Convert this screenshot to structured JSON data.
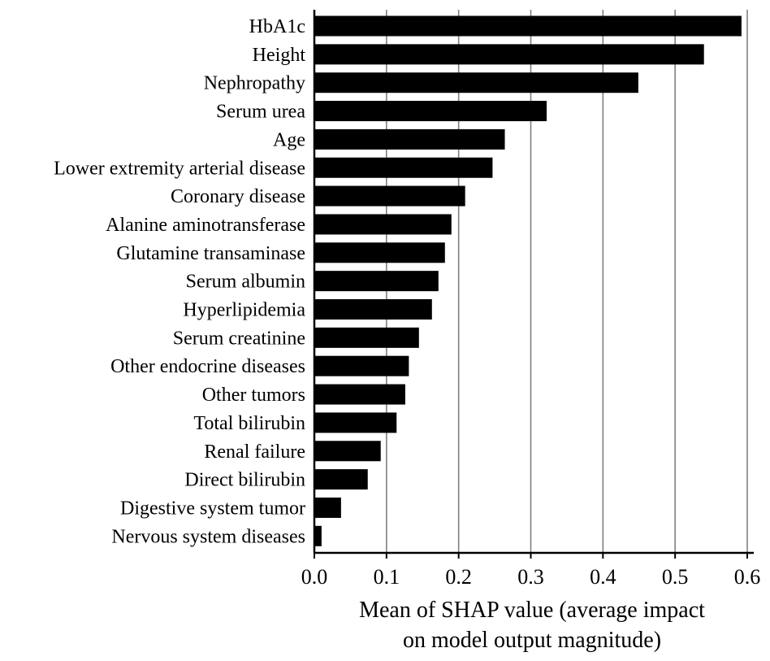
{
  "chart_data": {
    "type": "bar",
    "orientation": "horizontal",
    "categories": [
      "HbA1c",
      "Height",
      "Nephropathy",
      "Serum urea",
      "Age",
      "Lower extremity arterial disease",
      "Coronary disease",
      "Alanine aminotransferase",
      "Glutamine transaminase",
      "Serum albumin",
      "Hyperlipidemia",
      "Serum creatinine",
      "Other endocrine diseases",
      "Other tumors",
      "Total bilirubin",
      "Renal failure",
      "Direct bilirubin",
      "Digestive system tumor",
      "Nervous system diseases"
    ],
    "values": [
      0.592,
      0.54,
      0.449,
      0.322,
      0.264,
      0.247,
      0.209,
      0.19,
      0.181,
      0.172,
      0.163,
      0.145,
      0.131,
      0.126,
      0.114,
      0.092,
      0.074,
      0.037,
      0.01
    ],
    "title": "",
    "xlabel_lines": [
      "Mean of SHAP value (average impact",
      "on model output magnitude)"
    ],
    "ylabel": "",
    "xlim": [
      0,
      0.6
    ],
    "xticks": [
      "0.0",
      "0.1",
      "0.2",
      "0.3",
      "0.4",
      "0.5",
      "0.6"
    ],
    "xtick_values": [
      0,
      0.1,
      0.2,
      0.3,
      0.4,
      0.5,
      0.6
    ],
    "grid": "vertical",
    "bar_color": "#000000",
    "grid_color": "#808080"
  }
}
